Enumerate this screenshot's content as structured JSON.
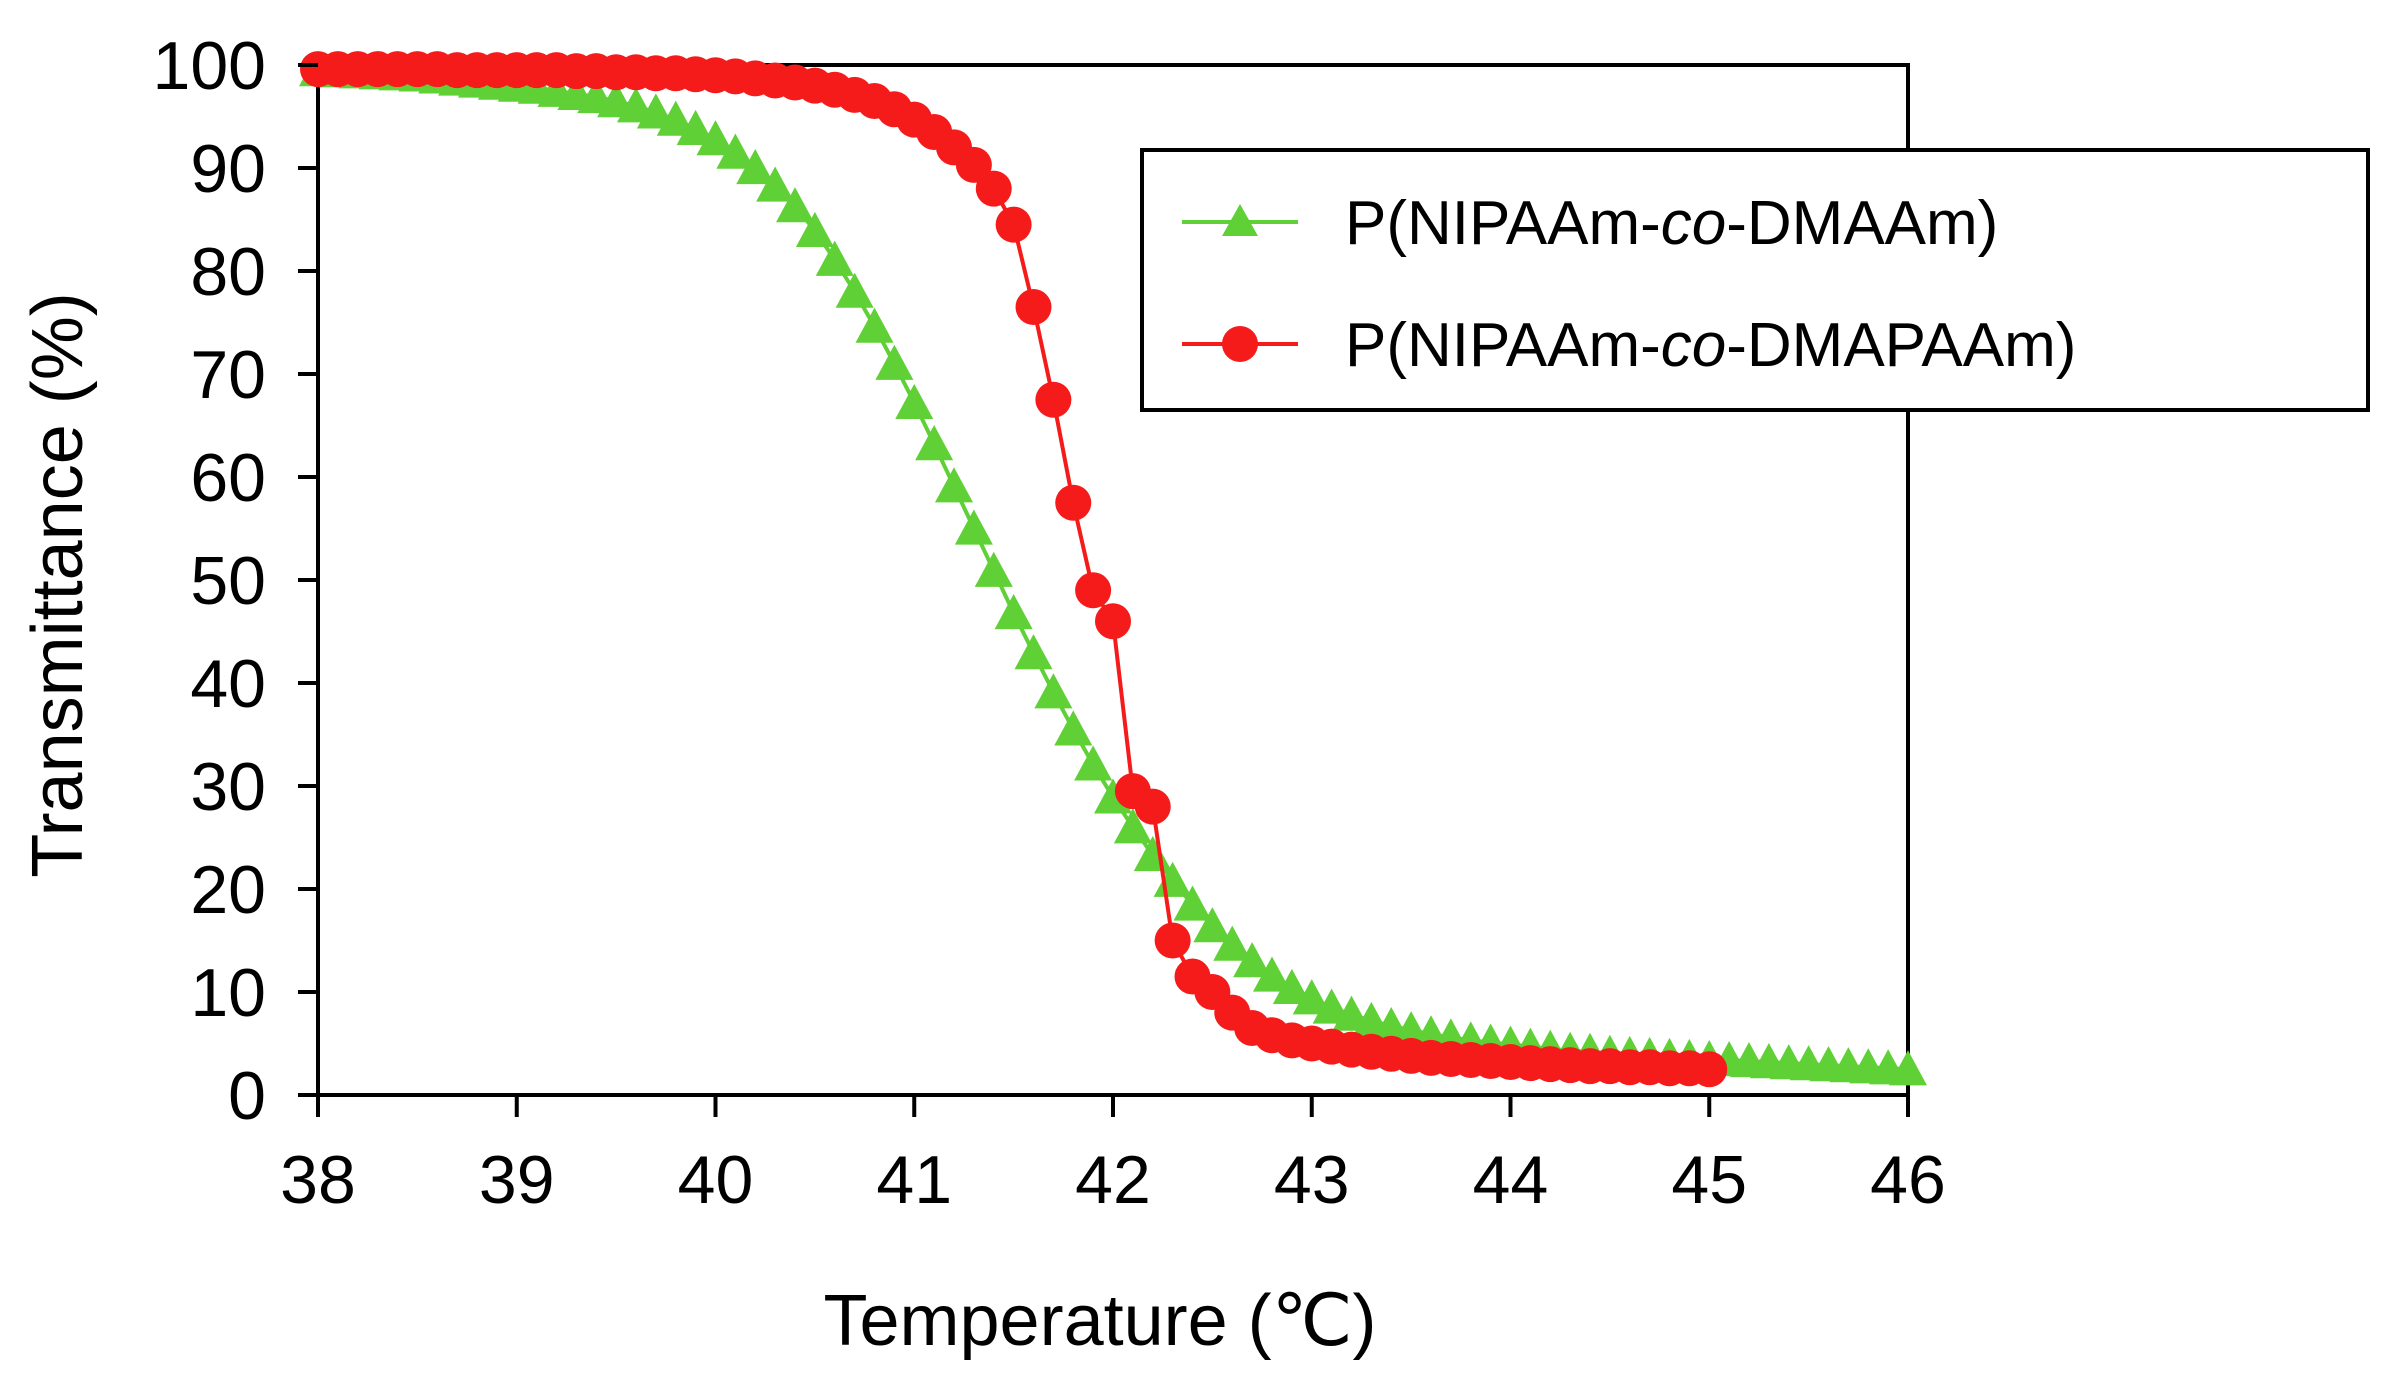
{
  "chart_data": {
    "type": "line",
    "title": "",
    "xlabel": "Temperature (℃)",
    "ylabel": "Transmittance (%)",
    "xlim": [
      38,
      46
    ],
    "ylim": [
      0,
      100
    ],
    "x_ticks": [
      "38",
      "39",
      "40",
      "41",
      "42",
      "43",
      "44",
      "45",
      "46"
    ],
    "y_ticks": [
      "0",
      "10",
      "20",
      "30",
      "40",
      "50",
      "60",
      "70",
      "80",
      "90",
      "100"
    ],
    "grid": false,
    "legend_position": "top-right",
    "series": [
      {
        "name": "P(NIPAAm-co-DMAAm)",
        "name_parts": [
          "P(NIPAAm-",
          "co",
          "-DMAAm)"
        ],
        "color": "#5fd035",
        "marker": "triangle",
        "x": [
          38.0,
          38.1,
          38.2,
          38.3,
          38.4,
          38.5,
          38.6,
          38.7,
          38.8,
          38.9,
          39.0,
          39.1,
          39.2,
          39.3,
          39.4,
          39.5,
          39.6,
          39.7,
          39.8,
          39.9,
          40.0,
          40.1,
          40.2,
          40.3,
          40.4,
          40.5,
          40.6,
          40.7,
          40.8,
          40.9,
          41.0,
          41.1,
          41.2,
          41.3,
          41.4,
          41.5,
          41.6,
          41.7,
          41.8,
          41.9,
          42.0,
          42.1,
          42.2,
          42.3,
          42.4,
          42.5,
          42.6,
          42.7,
          42.8,
          42.9,
          43.0,
          43.1,
          43.2,
          43.3,
          43.4,
          43.5,
          43.6,
          43.7,
          43.8,
          43.9,
          44.0,
          44.1,
          44.2,
          44.3,
          44.4,
          44.5,
          44.6,
          44.7,
          44.8,
          44.9,
          45.0,
          45.1,
          45.2,
          45.3,
          45.4,
          45.5,
          45.6,
          45.7,
          45.8,
          45.9,
          46.0
        ],
        "values": [
          99.5,
          99.4,
          99.3,
          99.2,
          99.1,
          99.0,
          98.8,
          98.6,
          98.4,
          98.2,
          98.0,
          97.8,
          97.5,
          97.2,
          96.9,
          96.5,
          96.0,
          95.4,
          94.7,
          93.8,
          92.8,
          91.5,
          90.0,
          88.3,
          86.3,
          83.9,
          81.1,
          78.0,
          74.6,
          71.0,
          67.2,
          63.2,
          59.1,
          55.0,
          50.9,
          46.8,
          42.9,
          39.1,
          35.5,
          32.1,
          28.9,
          26.0,
          23.3,
          20.8,
          18.5,
          16.4,
          14.6,
          13.0,
          11.6,
          10.4,
          9.4,
          8.5,
          7.8,
          7.2,
          6.7,
          6.3,
          5.9,
          5.6,
          5.3,
          5.1,
          4.9,
          4.7,
          4.5,
          4.3,
          4.2,
          4.0,
          3.9,
          3.8,
          3.7,
          3.6,
          3.5,
          3.4,
          3.3,
          3.2,
          3.1,
          3.0,
          2.9,
          2.8,
          2.7,
          2.6,
          2.5
        ]
      },
      {
        "name": "P(NIPAAm-co-DMAPAAm)",
        "name_parts": [
          "P(NIPAAm-",
          "co",
          "-DMAPAAm)"
        ],
        "color": "#f51b1b",
        "marker": "circle",
        "x": [
          38.0,
          38.1,
          38.2,
          38.3,
          38.4,
          38.5,
          38.6,
          38.7,
          38.8,
          38.9,
          39.0,
          39.1,
          39.2,
          39.3,
          39.4,
          39.5,
          39.6,
          39.7,
          39.8,
          39.9,
          40.0,
          40.1,
          40.2,
          40.3,
          40.4,
          40.5,
          40.6,
          40.7,
          40.8,
          40.9,
          41.0,
          41.1,
          41.2,
          41.3,
          41.4,
          41.5,
          41.6,
          41.7,
          41.8,
          41.9,
          42.0,
          42.1,
          42.2,
          42.3,
          42.4,
          42.5,
          42.6,
          42.7,
          42.8,
          42.9,
          43.0,
          43.1,
          43.2,
          43.3,
          43.4,
          43.5,
          43.6,
          43.7,
          43.8,
          43.9,
          44.0,
          44.1,
          44.2,
          44.3,
          44.4,
          44.5,
          44.6,
          44.7,
          44.8,
          44.9,
          45.0
        ],
        "values": [
          99.6,
          99.6,
          99.6,
          99.6,
          99.6,
          99.6,
          99.6,
          99.5,
          99.5,
          99.5,
          99.5,
          99.5,
          99.5,
          99.4,
          99.4,
          99.3,
          99.3,
          99.2,
          99.2,
          99.1,
          99.0,
          98.9,
          98.7,
          98.5,
          98.3,
          98.0,
          97.6,
          97.1,
          96.5,
          95.7,
          94.7,
          93.5,
          92.0,
          90.3,
          88.0,
          84.5,
          76.5,
          67.5,
          57.5,
          49.0,
          46.0,
          29.5,
          28.0,
          15.0,
          11.5,
          10.0,
          8.0,
          6.5,
          5.8,
          5.3,
          5.0,
          4.7,
          4.4,
          4.2,
          4.0,
          3.8,
          3.6,
          3.5,
          3.4,
          3.3,
          3.2,
          3.1,
          3.0,
          2.9,
          2.8,
          2.8,
          2.7,
          2.7,
          2.6,
          2.6,
          2.5
        ]
      }
    ]
  }
}
